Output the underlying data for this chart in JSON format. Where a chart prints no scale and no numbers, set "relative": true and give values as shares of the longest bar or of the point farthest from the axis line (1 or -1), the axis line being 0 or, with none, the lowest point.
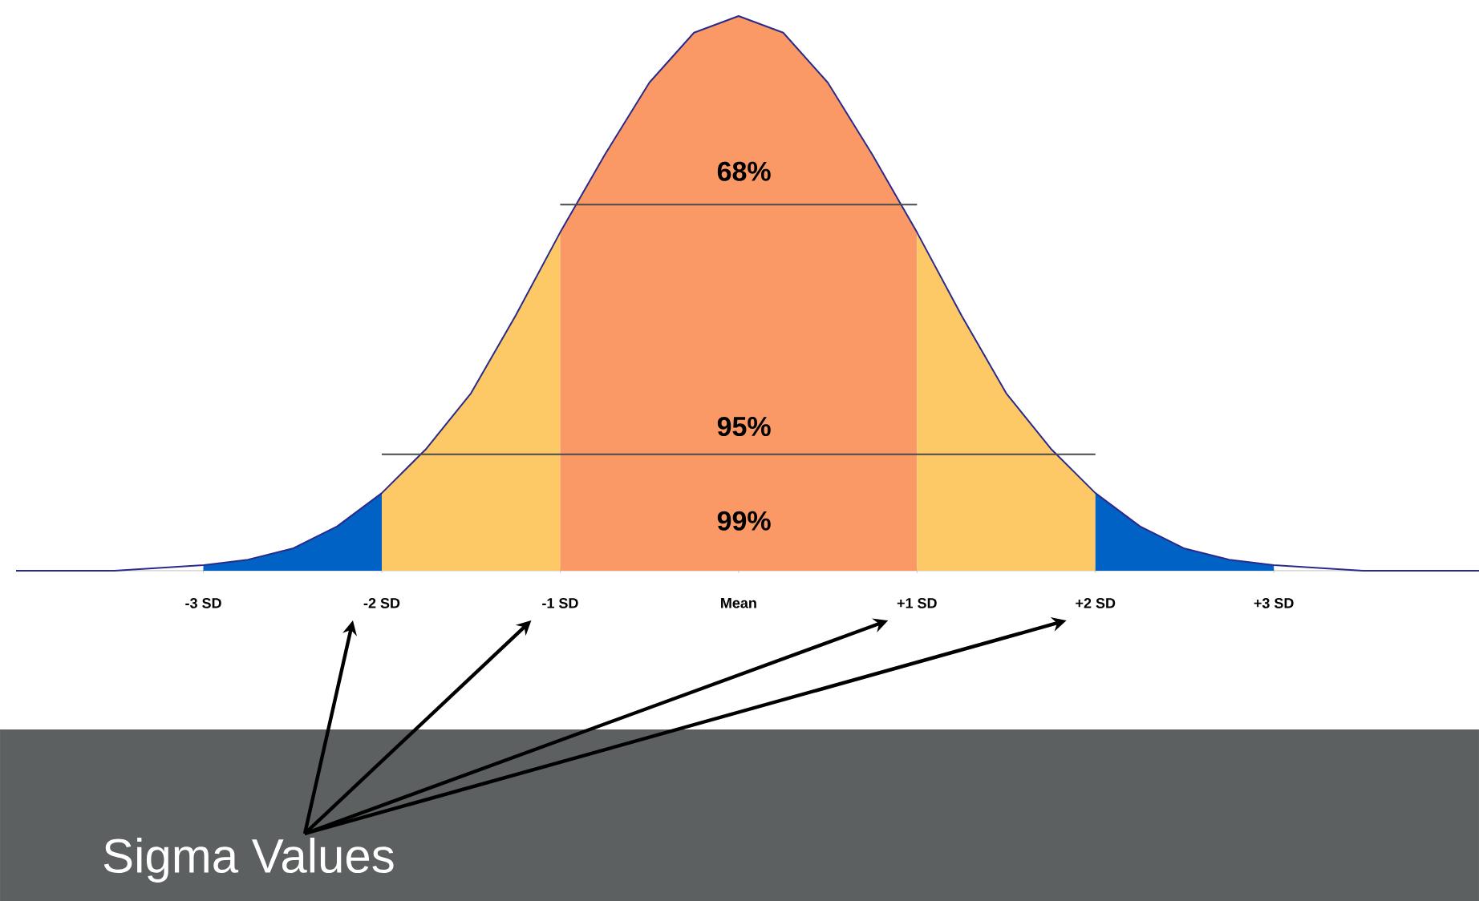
{
  "chart_data": {
    "type": "area",
    "relative": true,
    "xlim": [
      -4.05,
      4.15
    ],
    "xticks": [
      {
        "value": -3,
        "label": "-3 SD"
      },
      {
        "value": -2,
        "label": "-2 SD"
      },
      {
        "value": -1,
        "label": "-1 SD"
      },
      {
        "value": 0,
        "label": "Mean"
      },
      {
        "value": 1,
        "label": "+1 SD"
      },
      {
        "value": 2,
        "label": "+2 SD"
      },
      {
        "value": 3,
        "label": "+3 SD"
      }
    ],
    "series": [
      {
        "color": "#0062c4",
        "x": [
          -3,
          -2.75,
          -2.5,
          -2.25,
          -2
        ],
        "values": [
          0.01,
          0.02,
          0.04,
          0.08,
          0.14
        ]
      },
      {
        "color": "#fdc966",
        "x": [
          -2,
          -1.75,
          -1.5,
          -1.25,
          -1
        ],
        "values": [
          0.14,
          0.22,
          0.32,
          0.46,
          0.61
        ]
      },
      {
        "color": "#fb9966",
        "x": [
          -1,
          -0.75,
          -0.5,
          -0.25,
          0,
          0.25,
          0.5,
          0.75,
          1
        ],
        "values": [
          0.61,
          0.75,
          0.88,
          0.97,
          1,
          0.97,
          0.88,
          0.75,
          0.61
        ]
      },
      {
        "color": "#fdc966",
        "x": [
          1,
          1.25,
          1.5,
          1.75,
          2
        ],
        "values": [
          0.61,
          0.46,
          0.32,
          0.22,
          0.14
        ]
      },
      {
        "color": "#0062c4",
        "x": [
          2,
          2.25,
          2.5,
          2.75,
          3
        ],
        "values": [
          0.14,
          0.08,
          0.04,
          0.02,
          0.01
        ]
      },
      {
        "type": "line",
        "color": "#2a2a8c",
        "x": [
          -4.05,
          -3.5,
          -3,
          -2.75,
          -2.5,
          -2.25,
          -2,
          -1.75,
          -1.5,
          -1.25,
          -1,
          -0.75,
          -0.5,
          -0.25,
          0,
          0.25,
          0.5,
          0.75,
          1,
          1.25,
          1.5,
          1.75,
          2,
          2.25,
          2.5,
          2.75,
          3,
          3.5,
          4.15
        ],
        "values": [
          0,
          0,
          0.01,
          0.02,
          0.04,
          0.08,
          0.14,
          0.22,
          0.32,
          0.46,
          0.61,
          0.75,
          0.88,
          0.97,
          1,
          0.97,
          0.88,
          0.75,
          0.61,
          0.46,
          0.32,
          0.22,
          0.14,
          0.08,
          0.04,
          0.02,
          0.01,
          0,
          0
        ]
      },
      {
        "type": "line",
        "color": "#4a4a4a",
        "x": [
          -1,
          1
        ],
        "values": [
          0.66,
          0.66
        ]
      },
      {
        "type": "line",
        "color": "#4a4a4a",
        "x": [
          -2,
          2
        ],
        "values": [
          0.21,
          0.21
        ]
      }
    ],
    "annotations": [
      "68%",
      "95%",
      "99%",
      "Sigma Values"
    ]
  }
}
